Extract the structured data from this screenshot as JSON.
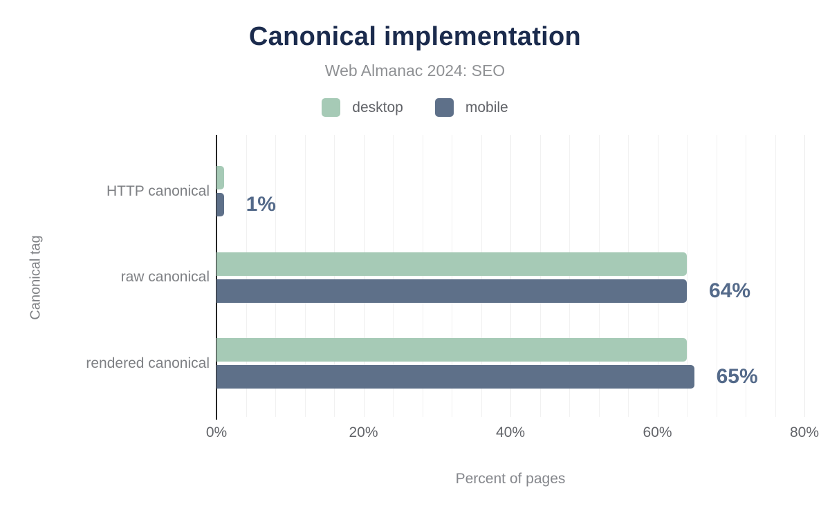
{
  "title": "Canonical implementation",
  "subtitle": "Web Almanac 2024: SEO",
  "legend": [
    {
      "label": "desktop",
      "color": "#a6cab6"
    },
    {
      "label": "mobile",
      "color": "#5e7089"
    }
  ],
  "colors": {
    "title": "#1b2b4d",
    "desktop_bar": "#a6cab6",
    "mobile_bar": "#5e7089",
    "value_label": "#546a8a",
    "axis_line": "#262626",
    "gridline": "#f1f1f1"
  },
  "chart_data": {
    "type": "bar",
    "orientation": "horizontal",
    "title": "Canonical implementation",
    "subtitle": "Web Almanac 2024: SEO",
    "categories": [
      "HTTP canonical",
      "raw canonical",
      "rendered canonical"
    ],
    "series": [
      {
        "name": "desktop",
        "color": "#a6cab6",
        "values": [
          1,
          64,
          64
        ]
      },
      {
        "name": "mobile",
        "color": "#5e7089",
        "values": [
          1,
          64,
          65
        ]
      }
    ],
    "value_labels": [
      "1%",
      "64%",
      "65%"
    ],
    "xlabel": "Percent of pages",
    "ylabel": "Canonical tag",
    "xlim": [
      0,
      80
    ],
    "x_ticks": [
      "0%",
      "20%",
      "40%",
      "60%",
      "80%"
    ],
    "x_tick_values": [
      0,
      20,
      40,
      60,
      80
    ],
    "minor_grid_step": 4,
    "grid": "vertical",
    "legend_position": "top"
  }
}
